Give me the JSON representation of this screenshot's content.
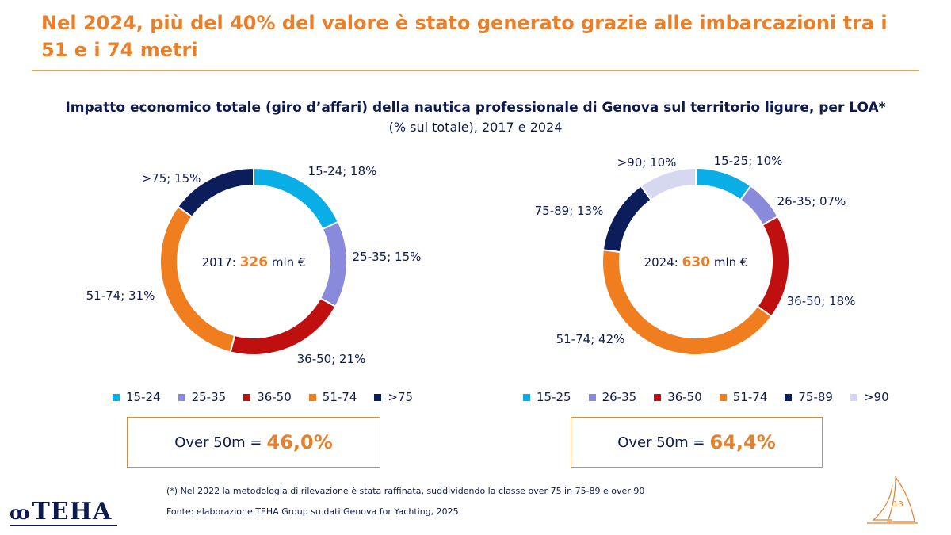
{
  "headline": "Nel 2024, più del 40% del valore è stato generato grazie alle imbarcazioni tra i 51 e i 74 metri",
  "chart_title": "Impatto economico totale (giro d’affari) della nautica professionale di Genova sul territorio ligure, per LOA*",
  "chart_subtitle": "(% sul totale), 2017 e 2024",
  "chart_data": [
    {
      "type": "pie",
      "donut": true,
      "center_label": "2017:",
      "center_value": "326",
      "center_unit": "mln €",
      "categories": [
        "15-24",
        "25-35",
        "36-50",
        "51-74",
        ">75"
      ],
      "values": [
        18,
        15,
        21,
        31,
        15
      ],
      "slice_labels": [
        "15-24; 18%",
        "25-35; 15%",
        "36-50; 21%",
        "51-74; 31%",
        ">75; 15%"
      ],
      "colors": [
        "#0aaee6",
        "#8a8add",
        "#c00f0f",
        "#f07e1f",
        "#0c1d5c"
      ],
      "legend_position": "bottom",
      "summary_label": "Over 50m =",
      "summary_value": "46,0%"
    },
    {
      "type": "pie",
      "donut": true,
      "center_label": "2024:",
      "center_value": "630",
      "center_unit": "mln €",
      "categories": [
        "15-25",
        "26-35",
        "36-50",
        "51-74",
        "75-89",
        ">90"
      ],
      "values": [
        10,
        7,
        18,
        42,
        13,
        10
      ],
      "slice_labels": [
        "15-25; 10%",
        "26-35; 07%",
        "36-50; 18%",
        "51-74; 42%",
        "75-89; 13%",
        ">90; 10%"
      ],
      "colors": [
        "#0aaee6",
        "#8a8add",
        "#c00f0f",
        "#f07e1f",
        "#0c1d5c",
        "#d6d8f2"
      ],
      "legend_position": "bottom",
      "summary_label": "Over 50m =",
      "summary_value": "64,4%"
    }
  ],
  "footnote": "(*) Nel 2022 la metodologia di rilevazione è stata raffinata, suddividendo la classe over 75 in 75-89 e over 90",
  "source": "Fonte: elaborazione TEHA Group su dati Genova for Yachting, 2025",
  "logo_text": "TEHA",
  "page_number": "13"
}
